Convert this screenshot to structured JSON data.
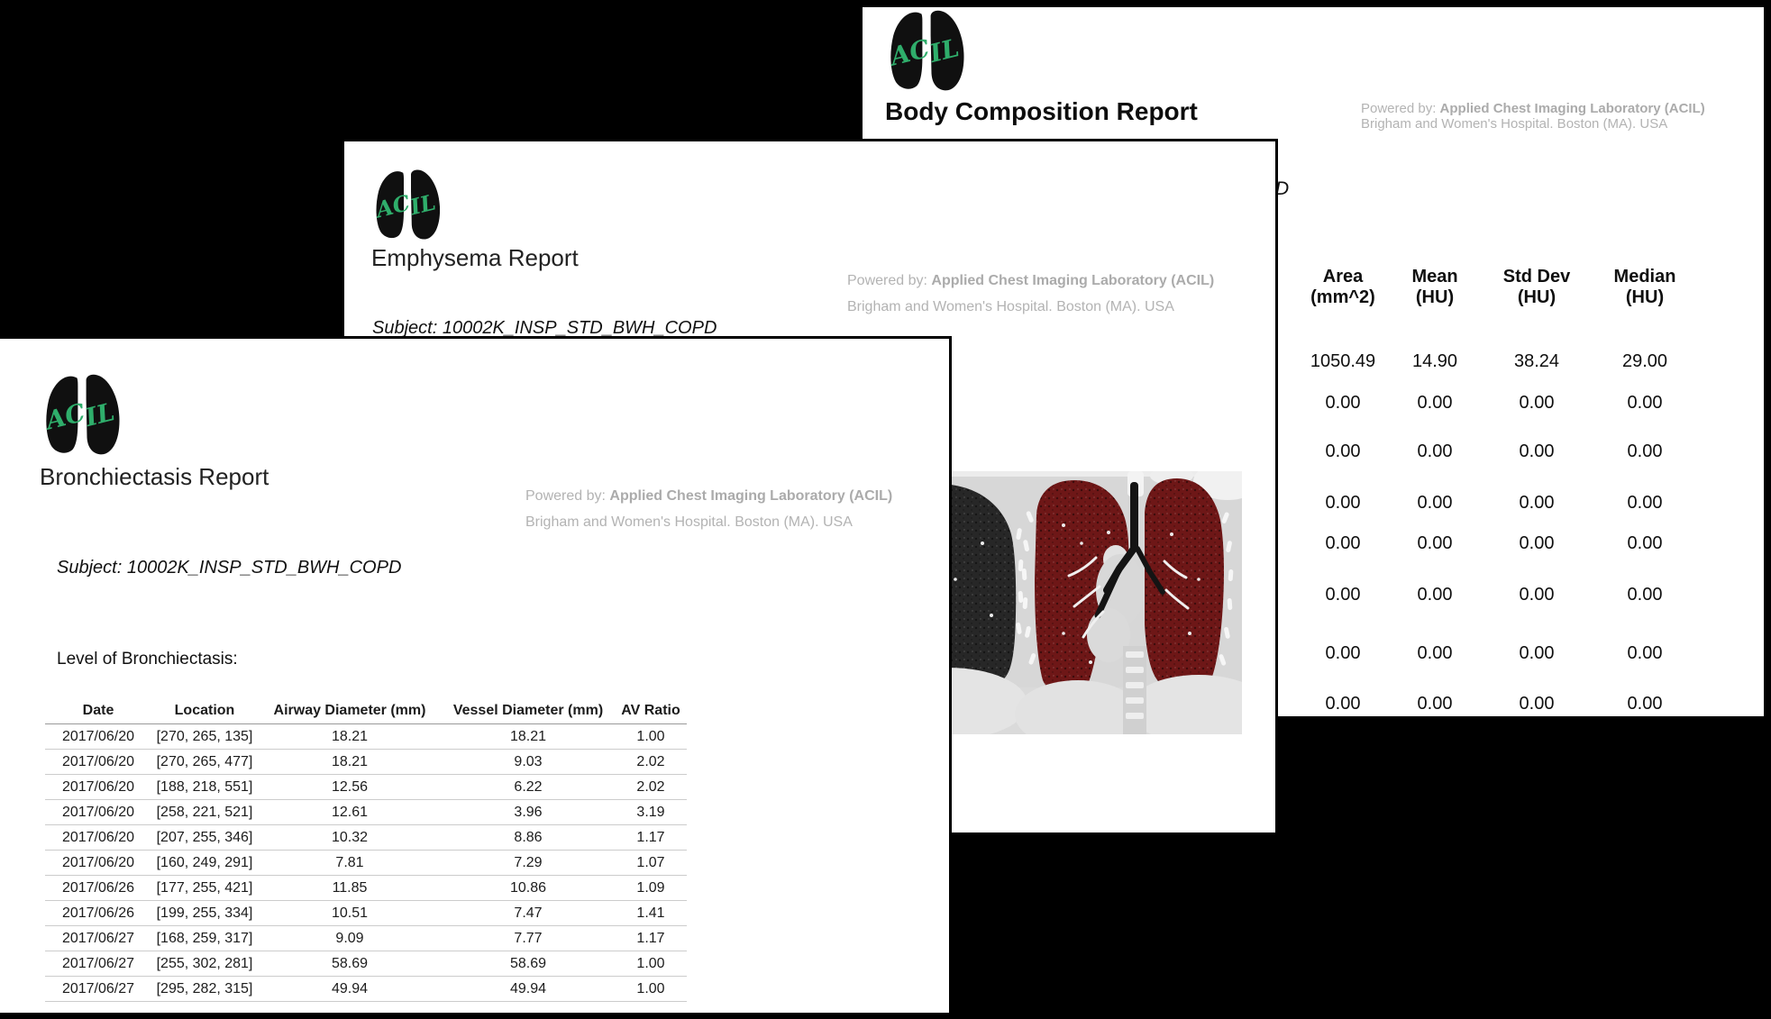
{
  "background_color": "#000000",
  "colors": {
    "acil_green": "#2fae6b",
    "emphysema_overlay_red": "#6e1717",
    "lung_dark": "#272727",
    "powered_by_gray": "#b3b3b3"
  },
  "brand": {
    "logo_text_left": "AC",
    "logo_text_right": "IL",
    "powered_by_prefix": "Powered by: ",
    "powered_by_org": "Applied Chest Imaging Laboratory (ACIL)",
    "powered_by_line2": "Brigham and Women's Hospital. Boston (MA). USA"
  },
  "windows": {
    "bronchiectasis": {
      "title": "Bronchiectasis Report",
      "subject": "Subject: 10002K_INSP_STD_BWH_COPD",
      "section_label": "Level of Bronchiectasis:",
      "table": {
        "headers": [
          "Date",
          "Location",
          "Airway Diameter (mm)",
          "Vessel Diameter (mm)",
          "AV Ratio"
        ],
        "rows": [
          [
            "2017/06/20",
            "[270, 265, 135]",
            "18.21",
            "18.21",
            "1.00"
          ],
          [
            "2017/06/20",
            "[270, 265, 477]",
            "18.21",
            "9.03",
            "2.02"
          ],
          [
            "2017/06/20",
            "[188, 218, 551]",
            "12.56",
            "6.22",
            "2.02"
          ],
          [
            "2017/06/20",
            "[258, 221, 521]",
            "12.61",
            "3.96",
            "3.19"
          ],
          [
            "2017/06/20",
            "[207, 255, 346]",
            "10.32",
            "8.86",
            "1.17"
          ],
          [
            "2017/06/20",
            "[160, 249, 291]",
            "7.81",
            "7.29",
            "1.07"
          ],
          [
            "2017/06/26",
            "[177, 255, 421]",
            "11.85",
            "10.86",
            "1.09"
          ],
          [
            "2017/06/26",
            "[199, 255, 334]",
            "10.51",
            "7.47",
            "1.41"
          ],
          [
            "2017/06/27",
            "[168, 259, 317]",
            "9.09",
            "7.77",
            "1.17"
          ],
          [
            "2017/06/27",
            "[255, 302, 281]",
            "58.69",
            "58.69",
            "1.00"
          ],
          [
            "2017/06/27",
            "[295, 282, 315]",
            "49.94",
            "49.94",
            "1.00"
          ]
        ]
      }
    },
    "emphysema": {
      "title": "Emphysema Report",
      "subject": "Subject: 10002K_INSP_STD_BWH_COPD",
      "ct_image_alt": "coronal chest CT with dark-red emphysema label overlay on lungs"
    },
    "body_composition": {
      "title": "Body Composition Report",
      "subject_visible_fragment": "D",
      "table": {
        "headers": [
          {
            "line1": "Area",
            "line2": "(mm^2)"
          },
          {
            "line1": "Mean",
            "line2": "(HU)"
          },
          {
            "line1": "Std Dev",
            "line2": "(HU)"
          },
          {
            "line1": "Median",
            "line2": "(HU)"
          }
        ],
        "rows": [
          [
            "1050.49",
            "14.90",
            "38.24",
            "29.00"
          ],
          [
            "0.00",
            "0.00",
            "0.00",
            "0.00"
          ],
          [
            "0.00",
            "0.00",
            "0.00",
            "0.00"
          ],
          [
            "0.00",
            "0.00",
            "0.00",
            "0.00"
          ],
          [
            "0.00",
            "0.00",
            "0.00",
            "0.00"
          ],
          [
            "0.00",
            "0.00",
            "0.00",
            "0.00"
          ],
          [
            "0.00",
            "0.00",
            "0.00",
            "0.00"
          ],
          [
            "0.00",
            "0.00",
            "0.00",
            "0.00"
          ]
        ]
      }
    }
  }
}
